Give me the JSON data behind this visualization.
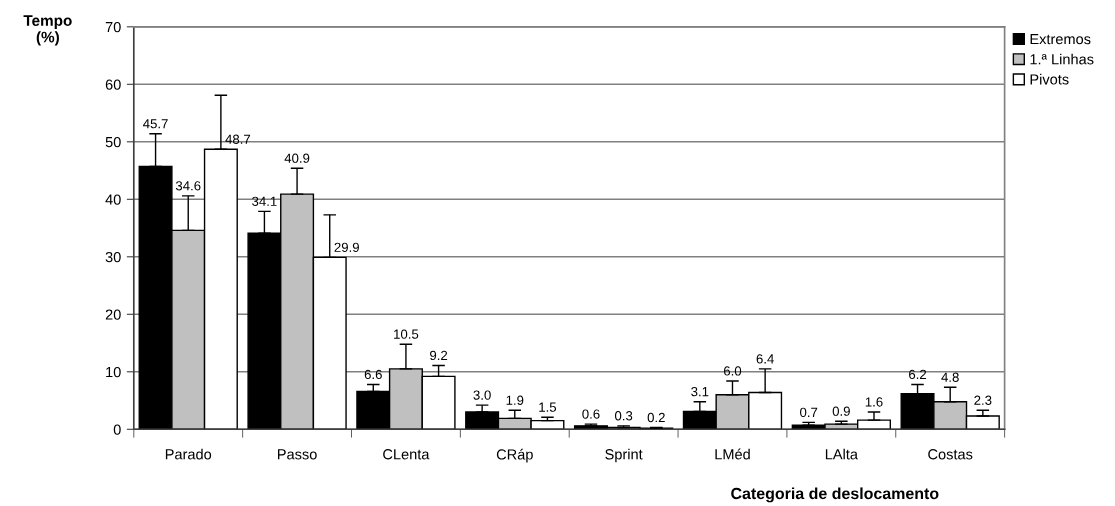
{
  "chart_data": {
    "type": "bar",
    "xlabel": "Categoria de deslocamento",
    "ylabel": "Tempo\n(%)",
    "categories": [
      "Parado",
      "Passo",
      "CLenta",
      "CRáp",
      "Sprint",
      "LMéd",
      "LAlta",
      "Costas"
    ],
    "series": [
      {
        "name": "Extremos",
        "color": "#000000",
        "values": [
          45.7,
          34.1,
          6.6,
          3.0,
          0.6,
          3.1,
          0.7,
          6.2
        ],
        "value_labels": [
          "45.7",
          "34.1",
          "6.6",
          "3.0",
          "0.6",
          "3.1",
          "0.7",
          "6.2"
        ],
        "errors": [
          [
            45.7,
            51.4
          ],
          [
            34.1,
            37.9
          ],
          [
            6.6,
            7.8
          ],
          [
            3.0,
            4.2
          ],
          [
            0.6,
            0.9
          ],
          [
            3.1,
            4.8
          ],
          [
            0.7,
            1.2
          ],
          [
            6.2,
            7.8
          ]
        ]
      },
      {
        "name": "1.ª Linhas",
        "color": "#c0c0c0",
        "values": [
          34.6,
          40.9,
          10.5,
          1.9,
          0.3,
          6.0,
          0.9,
          4.8
        ],
        "value_labels": [
          "34.6",
          "40.9",
          "10.5",
          "1.9",
          "0.3",
          "6.0",
          "0.9",
          "4.8"
        ],
        "errors": [
          [
            34.6,
            40.6
          ],
          [
            40.9,
            45.4
          ],
          [
            10.5,
            14.8
          ],
          [
            1.9,
            3.3
          ],
          [
            0.3,
            0.6
          ],
          [
            6.0,
            8.4
          ],
          [
            0.9,
            1.4
          ],
          [
            4.8,
            7.3
          ]
        ]
      },
      {
        "name": "Pivots",
        "color": "#ffffff",
        "values": [
          48.7,
          29.9,
          9.2,
          1.5,
          0.2,
          6.4,
          1.6,
          2.3
        ],
        "value_labels": [
          "48.7",
          "29.9",
          "9.2",
          "1.5",
          "0.2",
          "6.4",
          "1.6",
          "2.3"
        ],
        "errors": [
          [
            48.7,
            58.1
          ],
          [
            29.9,
            37.3
          ],
          [
            9.2,
            11.1
          ],
          [
            1.5,
            2.1
          ],
          [
            0.2,
            0.3
          ],
          [
            6.4,
            10.5
          ],
          [
            1.6,
            3.0
          ],
          [
            2.3,
            3.3
          ]
        ]
      }
    ],
    "ylim": [
      0,
      70
    ],
    "yticks": [
      0,
      10,
      20,
      30,
      40,
      50,
      60,
      70
    ],
    "grid": "y",
    "legend": "top right"
  }
}
